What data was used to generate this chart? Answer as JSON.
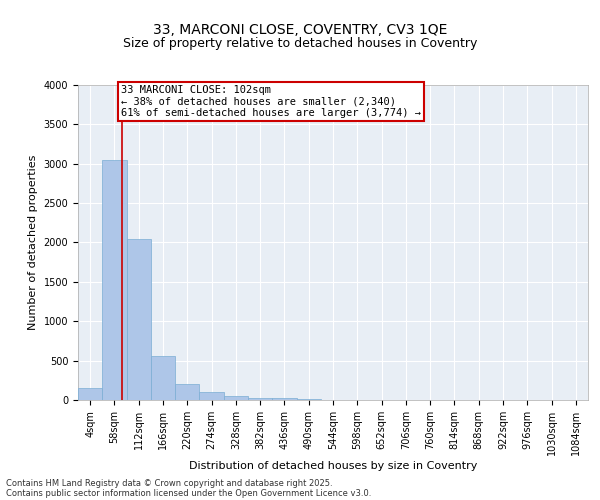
{
  "title_line1": "33, MARCONI CLOSE, COVENTRY, CV3 1QE",
  "title_line2": "Size of property relative to detached houses in Coventry",
  "xlabel": "Distribution of detached houses by size in Coventry",
  "ylabel": "Number of detached properties",
  "bin_starts": [
    4,
    58,
    112,
    166,
    220,
    274,
    328,
    382,
    436,
    490,
    544,
    598,
    652,
    706,
    760,
    814,
    868,
    922,
    976,
    1030,
    1084
  ],
  "bar_heights": [
    155,
    3050,
    2050,
    555,
    205,
    100,
    55,
    30,
    20,
    10,
    0,
    0,
    0,
    0,
    0,
    0,
    0,
    0,
    0,
    0,
    0
  ],
  "bar_color": "#aec6e8",
  "bar_edge_color": "#7aadd4",
  "bg_color": "#e8eef5",
  "grid_color": "#ffffff",
  "property_sqm": 102,
  "property_line_color": "#cc0000",
  "annotation_line1": "33 MARCONI CLOSE: 102sqm",
  "annotation_line2": "← 38% of detached houses are smaller (2,340)",
  "annotation_line3": "61% of semi-detached houses are larger (3,774) →",
  "annotation_box_color": "#cc0000",
  "ylim": [
    0,
    4000
  ],
  "yticks": [
    0,
    500,
    1000,
    1500,
    2000,
    2500,
    3000,
    3500,
    4000
  ],
  "footnote_line1": "Contains HM Land Registry data © Crown copyright and database right 2025.",
  "footnote_line2": "Contains public sector information licensed under the Open Government Licence v3.0.",
  "title_fontsize": 10,
  "subtitle_fontsize": 9,
  "tick_fontsize": 7,
  "label_fontsize": 8,
  "annot_fontsize": 7.5,
  "footnote_fontsize": 6
}
